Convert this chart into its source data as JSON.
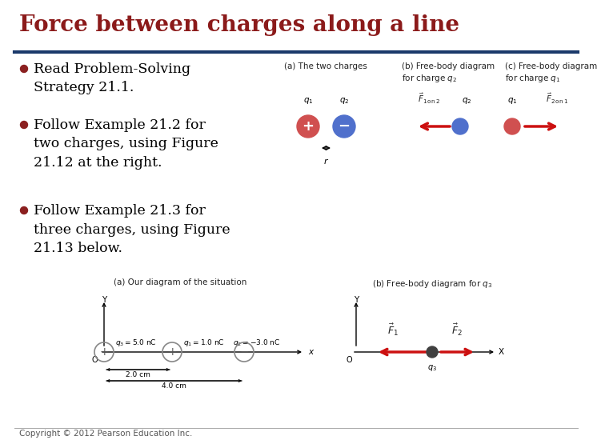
{
  "title": "Force between charges along a line",
  "title_color": "#8B1A1A",
  "title_fontsize": 20,
  "divider_color": "#1B3A6B",
  "bg_color": "#FFFFFF",
  "bullet_color": "#8B2020",
  "bullet_points": [
    "Read Problem-Solving\nStrategy 21.1.",
    "Follow Example 21.2 for\ntwo charges, using Figure\n21.12 at the right.",
    "Follow Example 21.3 for\nthree charges, using Figure\n21.13 below."
  ],
  "text_color": "#000000",
  "text_fontsize": 12.5,
  "footer_text": "Copyright © 2012 Pearson Education Inc.",
  "footer_fontsize": 7.5,
  "panel_a_label": "(a) The two charges",
  "panel_b_label": "(b) Free-body diagram\nfor charge $q_2$",
  "panel_c_label": "(c) Free-body diagram\nfor charge $q_1$",
  "sub_panel_a_label": "(a) Our diagram of the situation",
  "sub_panel_b_label": "(b) Free-body diagram for $q_3$",
  "q1_color": "#D05050",
  "q2_color": "#5070CC",
  "q3_color": "#6080CC",
  "arrow_color": "#CC1010",
  "axis_color": "#555555"
}
